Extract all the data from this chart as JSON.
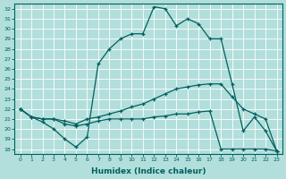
{
  "xlabel": "Humidex (Indice chaleur)",
  "bg_color": "#b2dfdb",
  "grid_color": "#ffffff",
  "line_color": "#006060",
  "xlim": [
    -0.5,
    23.5
  ],
  "ylim": [
    17.5,
    32.5
  ],
  "yticks": [
    18,
    19,
    20,
    21,
    22,
    23,
    24,
    25,
    26,
    27,
    28,
    29,
    30,
    31,
    32
  ],
  "xticks": [
    0,
    1,
    2,
    3,
    4,
    5,
    6,
    7,
    8,
    9,
    10,
    11,
    12,
    13,
    14,
    15,
    16,
    17,
    18,
    19,
    20,
    21,
    22,
    23
  ],
  "curve1_x": [
    0,
    1,
    2,
    3,
    4,
    5,
    6,
    7,
    8,
    9,
    10,
    11,
    12,
    13,
    14,
    15,
    16,
    17,
    18,
    19,
    20,
    21,
    22,
    23
  ],
  "curve1_y": [
    22,
    21.2,
    20.7,
    20.0,
    19.0,
    18.2,
    19.2,
    26.5,
    28.0,
    29.0,
    29.5,
    29.5,
    32.2,
    32.0,
    30.3,
    31.0,
    30.5,
    29.0,
    29.0,
    24.5,
    19.8,
    21.2,
    19.8,
    17.8
  ],
  "curve2_x": [
    0,
    1,
    2,
    3,
    4,
    5,
    6,
    7,
    8,
    9,
    10,
    11,
    12,
    13,
    14,
    15,
    16,
    17,
    18,
    19,
    20,
    21,
    22,
    23
  ],
  "curve2_y": [
    22.0,
    21.2,
    21.0,
    21.0,
    20.8,
    20.5,
    21.0,
    21.2,
    21.5,
    21.8,
    22.2,
    22.5,
    23.0,
    23.5,
    24.0,
    24.2,
    24.4,
    24.5,
    24.5,
    23.2,
    22.0,
    21.5,
    21.0,
    17.8
  ],
  "curve3_x": [
    0,
    1,
    2,
    3,
    4,
    5,
    6,
    7,
    8,
    9,
    10,
    11,
    12,
    13,
    14,
    15,
    16,
    17,
    18,
    19,
    20,
    21,
    22,
    23
  ],
  "curve3_y": [
    22.0,
    21.2,
    21.0,
    21.0,
    20.5,
    20.3,
    20.5,
    20.8,
    21.0,
    21.0,
    21.0,
    21.0,
    21.2,
    21.3,
    21.5,
    21.5,
    21.7,
    21.8,
    18.0,
    18.0,
    18.0,
    18.0,
    18.0,
    17.8
  ]
}
